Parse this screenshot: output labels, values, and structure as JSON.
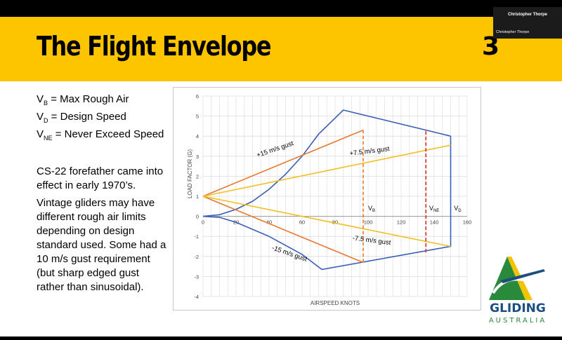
{
  "window": {
    "participant_name": "Christopher Thorpe",
    "participant_label": "Christopher Thorpe"
  },
  "slide": {
    "title": "The Flight Envelope",
    "number": "3"
  },
  "definitions": [
    {
      "symbol": "V",
      "subscript": "B",
      "text": " = Max Rough Air"
    },
    {
      "symbol": "V",
      "subscript": "D",
      "text": " = Design Speed"
    },
    {
      "symbol": "V",
      "subscript": "NE",
      "text": " = Never Exceed Speed"
    }
  ],
  "body": {
    "line1": "CS-22 forefather came into",
    "line2": "effect in early 1970’s.",
    "line3": "Vintage gliders may have",
    "line4": "different rough air limits",
    "line5": "depending on design",
    "line6": "standard used.  Some had a",
    "line7": "10 m/s gust requirement",
    "line8": "(but sharp edged gust",
    "line9": "rather than sinusoidal)."
  },
  "logo": {
    "word": "GLIDING",
    "sub": "AUSTRALIA"
  },
  "chart_data": {
    "type": "line",
    "xlabel": "AIRSPEED KNOTS",
    "ylabel": "LOAD FACTOR  (G)",
    "xlim": [
      0,
      160
    ],
    "ylim": [
      -4,
      6
    ],
    "xticks": [
      0,
      20,
      40,
      60,
      80,
      100,
      120,
      140,
      160
    ],
    "yticks": [
      -4,
      -3,
      -2,
      -1,
      0,
      1,
      2,
      3,
      4,
      5,
      6
    ],
    "grid": true,
    "colors": {
      "envelope": "#3a5fb5",
      "gust15": "#e8792e",
      "gust75": "#f0c020",
      "vb": "#e8792e",
      "vne": "#d8262b"
    },
    "series": [
      {
        "key": "envelope_upper",
        "color": "#3a5fb5",
        "x": [
          0,
          10,
          20,
          30,
          40,
          50,
          60,
          70,
          85,
          150
        ],
        "y": [
          0,
          0.08,
          0.35,
          0.75,
          1.35,
          2.1,
          3.0,
          4.1,
          5.3,
          4.0
        ]
      },
      {
        "key": "envelope_lower",
        "color": "#3a5fb5",
        "x": [
          0,
          10,
          20,
          40,
          60,
          72,
          150,
          150
        ],
        "y": [
          0,
          -0.05,
          -0.3,
          -1.0,
          -1.9,
          -2.65,
          -1.5,
          4.0
        ]
      },
      {
        "key": "gust15_up",
        "color": "#e8792e",
        "x": [
          0,
          97
        ],
        "y": [
          1,
          4.3
        ]
      },
      {
        "key": "gust15_down",
        "color": "#e8792e",
        "x": [
          0,
          97
        ],
        "y": [
          1,
          -2.3
        ]
      },
      {
        "key": "gust75_up",
        "color": "#f0c020",
        "x": [
          0,
          150
        ],
        "y": [
          1,
          3.55
        ]
      },
      {
        "key": "gust75_down",
        "color": "#f0c020",
        "x": [
          0,
          150
        ],
        "y": [
          1,
          -1.5
        ]
      }
    ],
    "vlines": [
      {
        "key": "vb",
        "x": 97,
        "y": [
          -2.3,
          4.3
        ],
        "color": "#e8792e"
      },
      {
        "key": "vne",
        "x": 135,
        "y": [
          -1.8,
          4.25
        ],
        "color": "#d8262b"
      }
    ],
    "annotations": [
      {
        "key": "gust15_up",
        "text": "+15 m/s gust",
        "x": 44,
        "y": 3.25,
        "angle": -19
      },
      {
        "key": "gust75_up",
        "text": "+7.5 m/s gust",
        "x": 101,
        "y": 3.15,
        "angle": -7
      },
      {
        "key": "gust15_down",
        "text": "-15 m/s gust",
        "x": 52,
        "y": -1.95,
        "angle": 19
      },
      {
        "key": "gust75_down",
        "text": "-7.5 m/s gust",
        "x": 102,
        "y": -1.3,
        "angle": 7
      }
    ],
    "speed_markers": [
      {
        "key": "vb",
        "symbol": "V",
        "subscript": "B",
        "x": 100,
        "y": 0.3
      },
      {
        "key": "vne",
        "symbol": "V",
        "subscript": "NE",
        "x": 137,
        "y": 0.3
      },
      {
        "key": "vd",
        "symbol": "V",
        "subscript": "D",
        "x": 152,
        "y": 0.3
      }
    ]
  }
}
